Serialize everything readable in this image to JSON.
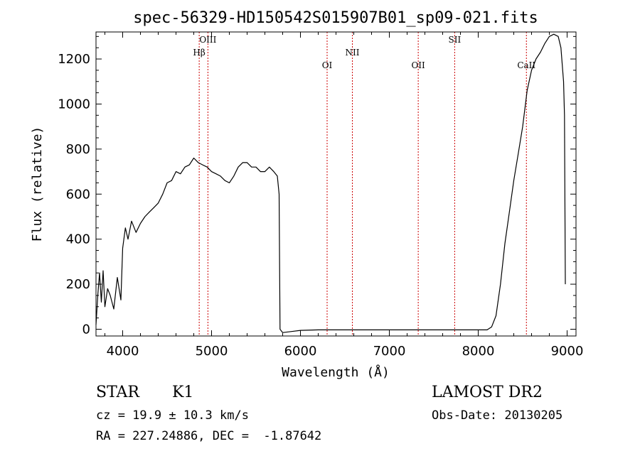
{
  "chart_data": {
    "type": "line",
    "title": "spec-56329-HD150542S015907B01_sp09-021.fits",
    "xlabel": "Wavelength (Å)",
    "ylabel": "Flux (relative)",
    "xlim": [
      3700,
      9100
    ],
    "ylim": [
      -30,
      1320
    ],
    "x_ticks": [
      4000,
      5000,
      6000,
      7000,
      8000,
      9000
    ],
    "y_ticks": [
      0,
      200,
      400,
      600,
      800,
      1000,
      1200
    ],
    "grid": false,
    "line_color": "#000000",
    "marker_color": "#cc0000",
    "lines": [
      {
        "label": "Hβ",
        "wavelength": 4861
      },
      {
        "label": "OIII",
        "wavelength": 4959
      },
      {
        "label": "OI",
        "wavelength": 6300
      },
      {
        "label": "NII",
        "wavelength": 6584
      },
      {
        "label": "OII",
        "wavelength": 7325
      },
      {
        "label": "SII",
        "wavelength": 7735
      },
      {
        "label": "CaII",
        "wavelength": 8542
      }
    ],
    "series": [
      {
        "x": [
          3700,
          3720,
          3740,
          3760,
          3780,
          3800,
          3830,
          3860,
          3900,
          3940,
          3980,
          4000,
          4030,
          4060,
          4100,
          4150,
          4200,
          4250,
          4300,
          4350,
          4400,
          4450,
          4500,
          4550,
          4600,
          4650,
          4700,
          4750,
          4800,
          4850,
          4900,
          4950,
          5000,
          5050,
          5100,
          5150,
          5200,
          5250,
          5300,
          5350,
          5400,
          5450,
          5500,
          5550,
          5600,
          5650,
          5700,
          5740,
          5760,
          5770,
          5800,
          5900,
          6000,
          6200,
          6400,
          6600,
          6800,
          7000,
          7200,
          7400,
          7600,
          7800,
          8000,
          8100,
          8150,
          8200,
          8250,
          8300,
          8350,
          8400,
          8450,
          8500,
          8550,
          8600,
          8650,
          8700,
          8750,
          8800,
          8850,
          8900,
          8930,
          8960,
          8970,
          8980
        ],
        "y": [
          20,
          150,
          250,
          120,
          260,
          100,
          180,
          150,
          90,
          230,
          130,
          360,
          450,
          400,
          480,
          430,
          470,
          500,
          520,
          540,
          560,
          600,
          650,
          660,
          700,
          690,
          720,
          730,
          760,
          740,
          730,
          720,
          700,
          690,
          680,
          660,
          650,
          680,
          720,
          740,
          740,
          720,
          720,
          700,
          700,
          720,
          700,
          680,
          600,
          0,
          -15,
          -10,
          -5,
          -3,
          -3,
          -3,
          -3,
          -3,
          -3,
          -3,
          -3,
          -3,
          -3,
          -3,
          10,
          60,
          200,
          380,
          520,
          660,
          780,
          900,
          1060,
          1150,
          1200,
          1230,
          1270,
          1300,
          1310,
          1300,
          1250,
          1100,
          950,
          200
        ]
      }
    ]
  },
  "info": {
    "object_class": "STAR",
    "subclass": "K1",
    "survey": "LAMOST DR2",
    "cz_text": "cz = 19.9 ± 10.3 km/s",
    "obs_date": "Obs-Date: 20130205",
    "coords": "RA = 227.24886, DEC =  -1.87642"
  }
}
